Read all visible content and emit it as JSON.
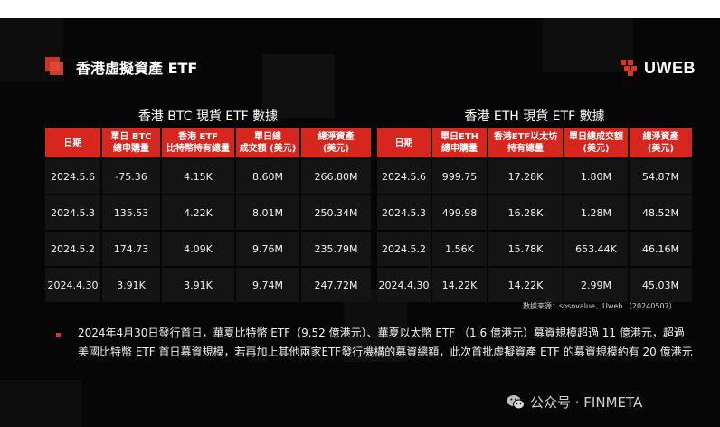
{
  "slide": {
    "title": "香港虛擬資產 ETF",
    "brand": "UWEB",
    "accent_color": "#d6261e"
  },
  "btc": {
    "title": "香港 BTC 現貨 ETF 數據",
    "headers": [
      "日期",
      "單日 BTC\n總申購量",
      "香港 ETF\n比特幣持有總量",
      "單日總\n成交額 (美元)",
      "總淨資產\n(美元)"
    ],
    "rows": [
      [
        "2024.5.6",
        "-75.36",
        "4.15K",
        "8.60M",
        "266.80M"
      ],
      [
        "2024.5.3",
        "135.53",
        "4.22K",
        "8.01M",
        "250.34M"
      ],
      [
        "2024.5.2",
        "174.73",
        "4.09K",
        "9.76M",
        "235.79M"
      ],
      [
        "2024.4.30",
        "3.91K",
        "3.91K",
        "9.74M",
        "247.72M"
      ]
    ]
  },
  "eth": {
    "title": "香港 ETH 現貨 ETF 數據",
    "headers": [
      "日期",
      "單日ETH\n總申購量",
      "香港ETF以太坊\n持有總量",
      "單日總成交額\n(美元)",
      "總淨資產\n(美元)"
    ],
    "rows": [
      [
        "2024.5.6",
        "999.75",
        "17.28K",
        "1.80M",
        "54.87M"
      ],
      [
        "2024.5.3",
        "499.98",
        "16.28K",
        "1.28M",
        "48.52M"
      ],
      [
        "2024.5.2",
        "1.56K",
        "15.78K",
        "653.44K",
        "46.16M"
      ],
      [
        "2024.4.30",
        "14.22K",
        "14.22K",
        "2.99M",
        "45.03M"
      ]
    ]
  },
  "source": "數據來源：sosovalue、Uweb （20240507）",
  "paragraph": "2024年4月30日發行首日，華夏比特幣 ETF（9.52 億港元）、華夏以太幣 ETF （1.6 億港元）募資規模超過 11 億港元，超過美國比特幣 ETF 首日募資規模，若再加上其他兩家ETF發行機構的募資總額，此次首批虛擬資產 ETF 的募資規模約有 20 億港元",
  "watermark": {
    "icon": "wechat-icon",
    "text": "公众号 · FINMETA"
  }
}
